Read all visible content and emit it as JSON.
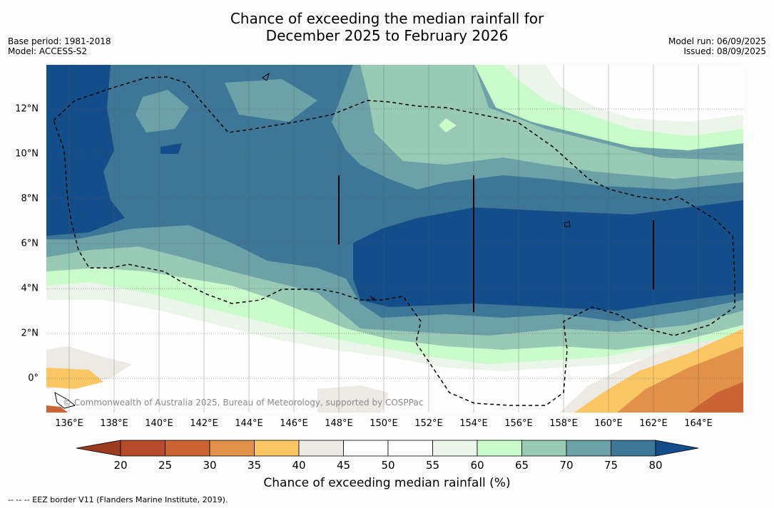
{
  "title": {
    "line1": "Chance of exceeding the median rainfall for",
    "line2": "December 2025 to February 2026"
  },
  "meta": {
    "base_period": "Base period: 1981-2018",
    "model": "Model: ACCESS-S2",
    "model_run": "Model run: 06/09/2025",
    "issued": "Issued: 08/09/2025"
  },
  "map": {
    "lon_labels": [
      "136°E",
      "138°E",
      "140°E",
      "142°E",
      "144°E",
      "146°E",
      "148°E",
      "150°E",
      "152°E",
      "154°E",
      "156°E",
      "158°E",
      "160°E",
      "162°E",
      "164°E"
    ],
    "lat_labels": [
      "12°N",
      "10°N",
      "8°N",
      "6°N",
      "4°N",
      "2°N",
      "0°"
    ],
    "copyright": "© Commonwealth of Australia 2025, Bureau of Meteorology, supported by COSPPac"
  },
  "colorbar": {
    "ticks": [
      "20",
      "25",
      "30",
      "35",
      "40",
      "45",
      "50",
      "55",
      "60",
      "65",
      "70",
      "75",
      "80"
    ],
    "colors": [
      "#9a3b22",
      "#b54b2b",
      "#cb6334",
      "#e1914a",
      "#fbc765",
      "#edeae6",
      "#fefefe",
      "#fefefe",
      "#ebf5e9",
      "#c9fbcb",
      "#98cab5",
      "#6ba1a7",
      "#3d7697",
      "#134e8b"
    ],
    "label": "Chance of exceeding median rainfall (%)"
  },
  "footnote": "--  --  -- EEZ border V11 (Flanders Marine Institute, 2019)."
}
